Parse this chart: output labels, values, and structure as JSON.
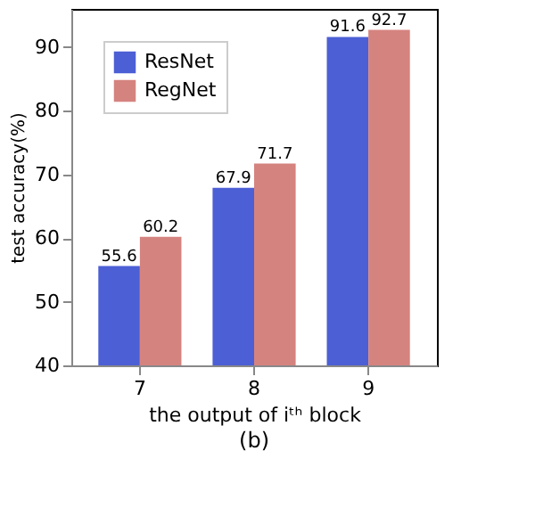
{
  "chart_data": {
    "type": "bar",
    "categories": [
      "7",
      "8",
      "9"
    ],
    "series": [
      {
        "name": "ResNet",
        "color": "#4c5fd5",
        "values": [
          55.6,
          67.9,
          91.6
        ]
      },
      {
        "name": "RegNet",
        "color": "#d5837f",
        "values": [
          60.2,
          71.7,
          92.7
        ]
      }
    ],
    "xlabel": "the output of iᵗʰ block",
    "ylabel": "test accuracy(%)",
    "ylim": [
      40,
      96
    ],
    "yticks": [
      40,
      50,
      60,
      70,
      80,
      90
    ],
    "data_labels": true,
    "grid": false,
    "legend": "top left",
    "annotations": [
      "(b)"
    ]
  }
}
